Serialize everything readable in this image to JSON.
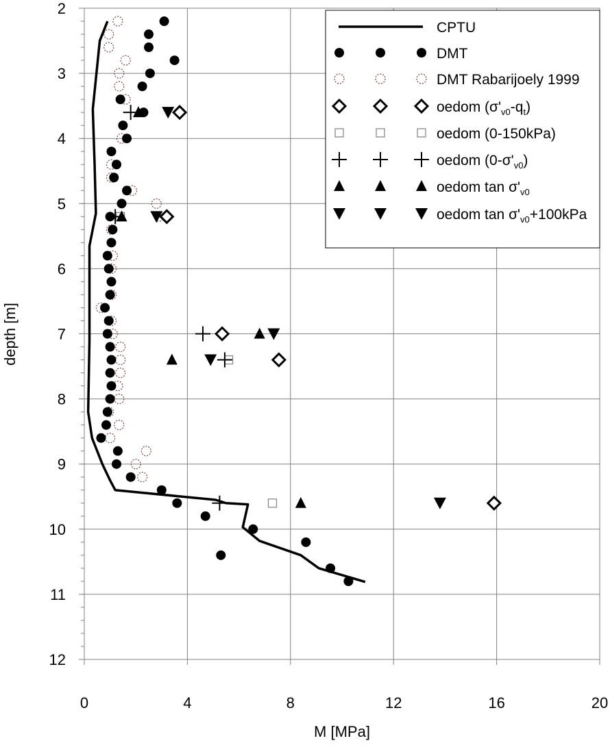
{
  "chart_data": {
    "type": "scatter",
    "xlabel": "M [MPa]",
    "ylabel": "depth [m]",
    "xlim": [
      0,
      20
    ],
    "ylim": [
      12,
      2
    ],
    "y_reversed": true,
    "grid": true,
    "legend_placement": "top-right",
    "xticks": [
      0,
      4,
      8,
      12,
      16,
      20
    ],
    "yticks": [
      2,
      3,
      4,
      5,
      6,
      7,
      8,
      9,
      10,
      11,
      12
    ],
    "series": [
      {
        "name": "CPTU",
        "marker": "line",
        "color": "#000000",
        "points": [
          [
            0.9,
            2.2
          ],
          [
            0.6,
            2.5
          ],
          [
            0.33,
            3.55
          ],
          [
            0.4,
            4.4
          ],
          [
            0.45,
            5.15
          ],
          [
            0.2,
            5.65
          ],
          [
            0.2,
            7.1
          ],
          [
            0.15,
            8.2
          ],
          [
            0.3,
            8.6
          ],
          [
            0.7,
            9.0
          ],
          [
            1.0,
            9.25
          ],
          [
            1.2,
            9.4
          ],
          [
            5.1,
            9.55
          ],
          [
            5.5,
            9.6
          ],
          [
            6.35,
            9.62
          ],
          [
            6.15,
            9.97
          ],
          [
            6.8,
            10.18
          ],
          [
            8.4,
            10.4
          ],
          [
            9.1,
            10.6
          ],
          [
            10.9,
            10.81
          ]
        ]
      },
      {
        "name": "DMT",
        "marker": "filled-circle",
        "color": "#000000",
        "points": [
          [
            3.1,
            2.2
          ],
          [
            2.5,
            2.4
          ],
          [
            2.5,
            2.6
          ],
          [
            3.5,
            2.8
          ],
          [
            2.55,
            3.0
          ],
          [
            2.25,
            3.2
          ],
          [
            1.4,
            3.4
          ],
          [
            2.3,
            3.6
          ],
          [
            1.5,
            3.8
          ],
          [
            1.65,
            4.0
          ],
          [
            1.05,
            4.2
          ],
          [
            1.25,
            4.4
          ],
          [
            1.15,
            4.6
          ],
          [
            1.65,
            4.8
          ],
          [
            1.45,
            5.0
          ],
          [
            1.0,
            5.2
          ],
          [
            1.1,
            5.4
          ],
          [
            1.05,
            5.6
          ],
          [
            0.9,
            5.8
          ],
          [
            0.95,
            6.0
          ],
          [
            1.05,
            6.2
          ],
          [
            1.0,
            6.4
          ],
          [
            0.8,
            6.6
          ],
          [
            0.95,
            6.8
          ],
          [
            0.9,
            7.0
          ],
          [
            1.0,
            7.2
          ],
          [
            1.05,
            7.4
          ],
          [
            1.0,
            7.6
          ],
          [
            1.05,
            7.8
          ],
          [
            1.0,
            8.0
          ],
          [
            0.9,
            8.2
          ],
          [
            0.85,
            8.4
          ],
          [
            0.65,
            8.6
          ],
          [
            1.3,
            8.8
          ],
          [
            1.25,
            9.0
          ],
          [
            1.8,
            9.2
          ],
          [
            3.0,
            9.4
          ],
          [
            3.6,
            9.6
          ],
          [
            4.7,
            9.8
          ],
          [
            6.55,
            10.0
          ],
          [
            8.6,
            10.2
          ],
          [
            5.3,
            10.4
          ],
          [
            9.55,
            10.6
          ],
          [
            10.25,
            10.8
          ]
        ]
      },
      {
        "name": "DMT Rabarijoely 1999",
        "marker": "dashed-circle",
        "color": "#7a3b3b",
        "points": [
          [
            1.3,
            2.2
          ],
          [
            0.95,
            2.4
          ],
          [
            0.95,
            2.6
          ],
          [
            1.6,
            2.8
          ],
          [
            1.35,
            3.0
          ],
          [
            1.35,
            3.2
          ],
          [
            1.6,
            3.4
          ],
          [
            1.45,
            4.0
          ],
          [
            1.05,
            4.4
          ],
          [
            1.05,
            4.6
          ],
          [
            1.85,
            4.8
          ],
          [
            2.8,
            5.0
          ],
          [
            2.9,
            5.2
          ],
          [
            1.05,
            5.4
          ],
          [
            1.1,
            5.8
          ],
          [
            1.05,
            6.0
          ],
          [
            1.05,
            6.4
          ],
          [
            0.65,
            6.6
          ],
          [
            1.05,
            6.8
          ],
          [
            1.1,
            7.0
          ],
          [
            1.4,
            7.2
          ],
          [
            1.4,
            7.4
          ],
          [
            1.4,
            7.6
          ],
          [
            1.3,
            7.8
          ],
          [
            1.35,
            8.0
          ],
          [
            0.95,
            8.2
          ],
          [
            1.35,
            8.4
          ],
          [
            1.0,
            8.6
          ],
          [
            2.4,
            8.8
          ],
          [
            2.0,
            9.0
          ],
          [
            2.25,
            9.2
          ]
        ]
      },
      {
        "name": "oedom (σ'v0-qt)",
        "marker": "diamond",
        "color": "#000000",
        "points": [
          [
            3.7,
            3.6
          ],
          [
            3.2,
            5.2
          ],
          [
            5.35,
            7.0
          ],
          [
            7.55,
            7.4
          ],
          [
            15.9,
            9.6
          ]
        ]
      },
      {
        "name": "oedom (0-150kPa)",
        "marker": "open-square",
        "color": "#808080",
        "points": [
          [
            1.4,
            5.2
          ],
          [
            5.6,
            7.4
          ],
          [
            7.3,
            9.6
          ]
        ]
      },
      {
        "name": "oedom (0-σ'v0)",
        "marker": "plus",
        "color": "#000000",
        "points": [
          [
            1.8,
            3.6
          ],
          [
            1.2,
            5.2
          ],
          [
            4.6,
            7.0
          ],
          [
            5.45,
            7.4
          ],
          [
            5.25,
            9.6
          ]
        ]
      },
      {
        "name": "oedom tan σ'v0",
        "marker": "triangle-up",
        "color": "#000000",
        "points": [
          [
            2.1,
            3.6
          ],
          [
            1.45,
            5.2
          ],
          [
            6.8,
            7.0
          ],
          [
            3.4,
            7.4
          ],
          [
            8.4,
            9.6
          ]
        ]
      },
      {
        "name": "oedom tan σ'v0+100kPa",
        "marker": "triangle-down",
        "color": "#000000",
        "points": [
          [
            3.25,
            3.6
          ],
          [
            2.8,
            5.2
          ],
          [
            7.35,
            7.0
          ],
          [
            4.9,
            7.4
          ],
          [
            13.8,
            9.6
          ]
        ]
      }
    ],
    "legend_labels": [
      {
        "main": "CPTU"
      },
      {
        "main": "DMT"
      },
      {
        "main": "DMT Rabarijoely 1999"
      },
      {
        "main": "oedom (σ'",
        "sub": "v0",
        "main2": "-q",
        "sub2": "t",
        "main3": ")"
      },
      {
        "main": "oedom (0-150kPa)"
      },
      {
        "main": "oedom (0-σ'",
        "sub": "v0",
        "main2": ")"
      },
      {
        "main": "oedom tan σ'",
        "sub": "v0"
      },
      {
        "main": "oedom tan σ'",
        "sub": "v0",
        "main2": "+100kPa"
      }
    ]
  }
}
